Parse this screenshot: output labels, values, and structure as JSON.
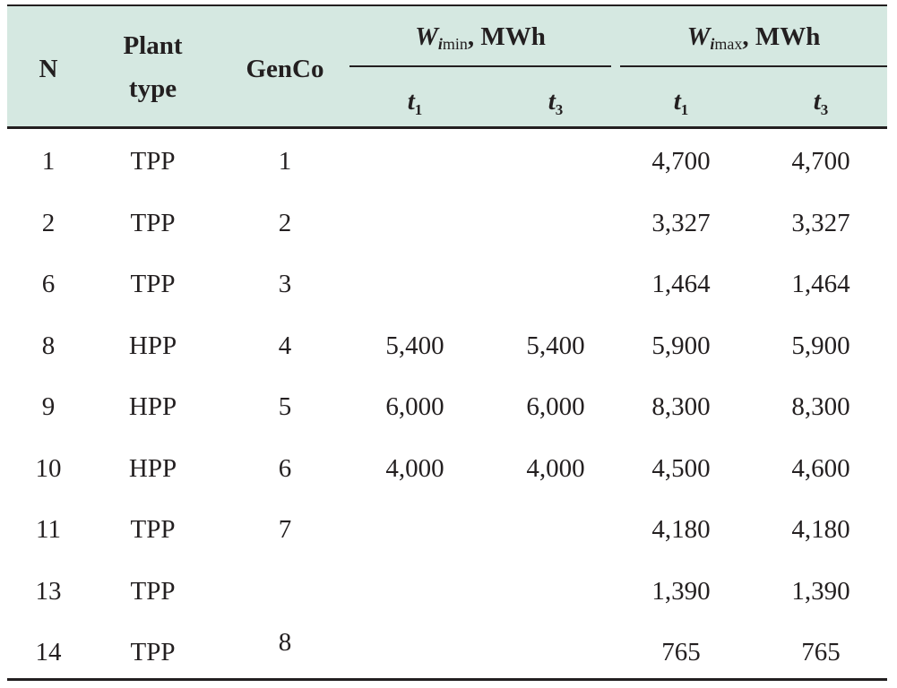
{
  "header": {
    "n": "N",
    "plant_type_line1": "Plant",
    "plant_type_line2": "type",
    "genco": "GenCo",
    "wmin": {
      "symbol": "W",
      "sub_i": "i",
      "sub_rest": "min",
      "unit": ", MWh"
    },
    "wmax": {
      "symbol": "W",
      "sub_i": "i",
      "sub_rest": "max",
      "unit": ", MWh"
    },
    "sub_cols": [
      {
        "symbol": "t",
        "index": "1"
      },
      {
        "symbol": "t",
        "index": "3"
      },
      {
        "symbol": "t",
        "index": "1"
      },
      {
        "symbol": "t",
        "index": "3"
      }
    ]
  },
  "rows": [
    {
      "n": "1",
      "type": "TPP",
      "genco": "1",
      "wmin_t1": "",
      "wmin_t3": "",
      "wmax_t1": "4,700",
      "wmax_t3": "4,700"
    },
    {
      "n": "2",
      "type": "TPP",
      "genco": "2",
      "wmin_t1": "",
      "wmin_t3": "",
      "wmax_t1": "3,327",
      "wmax_t3": "3,327"
    },
    {
      "n": "6",
      "type": "TPP",
      "genco": "3",
      "wmin_t1": "",
      "wmin_t3": "",
      "wmax_t1": "1,464",
      "wmax_t3": "1,464"
    },
    {
      "n": "8",
      "type": "HPP",
      "genco": "4",
      "wmin_t1": "5,400",
      "wmin_t3": "5,400",
      "wmax_t1": "5,900",
      "wmax_t3": "5,900"
    },
    {
      "n": "9",
      "type": "HPP",
      "genco": "5",
      "wmin_t1": "6,000",
      "wmin_t3": "6,000",
      "wmax_t1": "8,300",
      "wmax_t3": "8,300"
    },
    {
      "n": "10",
      "type": "HPP",
      "genco": "6",
      "wmin_t1": "4,000",
      "wmin_t3": "4,000",
      "wmax_t1": "4,500",
      "wmax_t3": "4,600"
    },
    {
      "n": "11",
      "type": "TPP",
      "genco": "7",
      "wmin_t1": "",
      "wmin_t3": "",
      "wmax_t1": "4,180",
      "wmax_t3": "4,180"
    },
    {
      "n": "13",
      "type": "TPP",
      "genco": "",
      "wmin_t1": "",
      "wmin_t3": "",
      "wmax_t1": "1,390",
      "wmax_t3": "1,390"
    },
    {
      "n": "14",
      "type": "TPP",
      "genco": "",
      "wmin_t1": "",
      "wmin_t3": "",
      "wmax_t1": "765",
      "wmax_t3": "765"
    }
  ],
  "merged_genco_13_14": "8"
}
